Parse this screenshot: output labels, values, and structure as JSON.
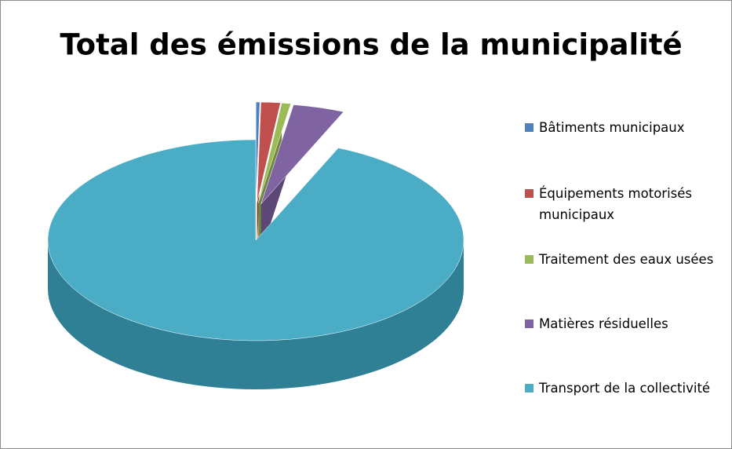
{
  "chart_data": {
    "type": "pie",
    "title": "Total des émissions de la municipalité",
    "categories": [
      "Bâtiments municipaux",
      "Équipements motorisés municipaux",
      "Traitement des eaux usées",
      "Matières résiduelles",
      "Transport de la collectivité"
    ],
    "values": [
      0.3,
      1.5,
      0.7,
      4,
      93.5
    ],
    "colors": [
      "#4f81bd",
      "#c0504d",
      "#9bbb59",
      "#8064a2",
      "#4bacc6"
    ],
    "side_colors": [
      "#385d8a",
      "#8c3836",
      "#71893f",
      "#5c4776",
      "#2f7f95"
    ],
    "legend": "right"
  }
}
